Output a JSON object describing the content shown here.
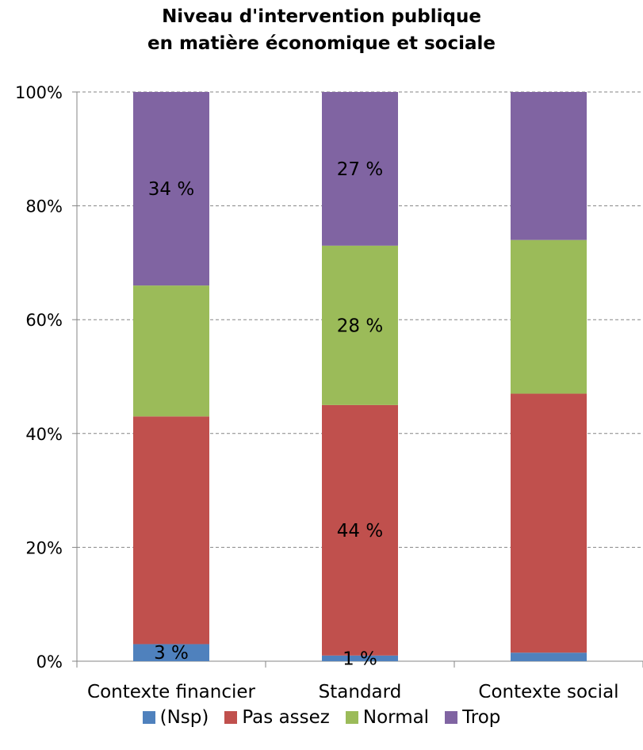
{
  "chart_data": {
    "type": "bar",
    "stacked": true,
    "title": [
      "Niveau d'intervention publique",
      "en matière économique et sociale"
    ],
    "categories": [
      "Contexte financier",
      "Standard",
      "Contexte social"
    ],
    "series": [
      {
        "name": "(Nsp)",
        "color": "#4f81bd",
        "values": [
          3,
          1,
          1.5
        ],
        "labels": [
          "3 %",
          "1 %",
          ""
        ]
      },
      {
        "name": "Pas assez",
        "color": "#c0504d",
        "values": [
          40,
          44,
          45.5
        ],
        "labels": [
          "",
          "44 %",
          ""
        ]
      },
      {
        "name": "Normal",
        "color": "#9bbb59",
        "values": [
          23,
          28,
          27
        ],
        "labels": [
          "",
          "28 %",
          ""
        ]
      },
      {
        "name": "Trop",
        "color": "#8064a2",
        "values": [
          34,
          27,
          26
        ],
        "labels": [
          "34 %",
          "27 %",
          ""
        ]
      }
    ],
    "y_ticks": [
      "0%",
      "20%",
      "40%",
      "60%",
      "80%",
      "100%"
    ],
    "ylim": [
      0,
      100
    ],
    "xlabel": "",
    "ylabel": "",
    "grid": true,
    "legend_position": "bottom"
  }
}
